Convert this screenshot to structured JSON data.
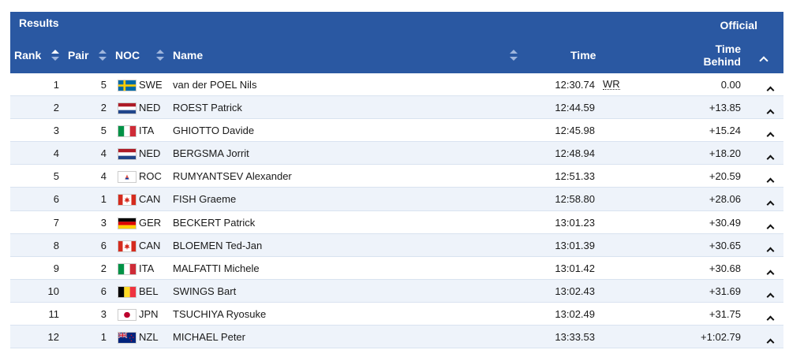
{
  "header": {
    "title": "Results",
    "status": "Official",
    "columns": {
      "rank": "Rank",
      "pair": "Pair",
      "noc": "NOC",
      "name": "Name",
      "time": "Time",
      "behind_line1": "Time",
      "behind_line2": "Behind"
    }
  },
  "rows": [
    {
      "rank": "1",
      "pair": "5",
      "noc": "SWE",
      "flag": "flag-sweden-icon",
      "name": "van der POEL Nils",
      "time": "12:30.74",
      "record": "WR",
      "behind": "0.00"
    },
    {
      "rank": "2",
      "pair": "2",
      "noc": "NED",
      "flag": "flag-netherlands-icon",
      "name": "ROEST Patrick",
      "time": "12:44.59",
      "record": "",
      "behind": "+13.85"
    },
    {
      "rank": "3",
      "pair": "5",
      "noc": "ITA",
      "flag": "flag-italy-icon",
      "name": "GHIOTTO Davide",
      "time": "12:45.98",
      "record": "",
      "behind": "+15.24"
    },
    {
      "rank": "4",
      "pair": "4",
      "noc": "NED",
      "flag": "flag-netherlands-icon",
      "name": "BERGSMA Jorrit",
      "time": "12:48.94",
      "record": "",
      "behind": "+18.20"
    },
    {
      "rank": "5",
      "pair": "4",
      "noc": "ROC",
      "flag": "flag-roc-icon",
      "name": "RUMYANTSEV Alexander",
      "time": "12:51.33",
      "record": "",
      "behind": "+20.59"
    },
    {
      "rank": "6",
      "pair": "1",
      "noc": "CAN",
      "flag": "flag-canada-icon",
      "name": "FISH Graeme",
      "time": "12:58.80",
      "record": "",
      "behind": "+28.06"
    },
    {
      "rank": "7",
      "pair": "3",
      "noc": "GER",
      "flag": "flag-germany-icon",
      "name": "BECKERT Patrick",
      "time": "13:01.23",
      "record": "",
      "behind": "+30.49"
    },
    {
      "rank": "8",
      "pair": "6",
      "noc": "CAN",
      "flag": "flag-canada-icon",
      "name": "BLOEMEN Ted-Jan",
      "time": "13:01.39",
      "record": "",
      "behind": "+30.65"
    },
    {
      "rank": "9",
      "pair": "2",
      "noc": "ITA",
      "flag": "flag-italy-icon",
      "name": "MALFATTI Michele",
      "time": "13:01.42",
      "record": "",
      "behind": "+30.68"
    },
    {
      "rank": "10",
      "pair": "6",
      "noc": "BEL",
      "flag": "flag-belgium-icon",
      "name": "SWINGS Bart",
      "time": "13:02.43",
      "record": "",
      "behind": "+31.69"
    },
    {
      "rank": "11",
      "pair": "3",
      "noc": "JPN",
      "flag": "flag-japan-icon",
      "name": "TSUCHIYA Ryosuke",
      "time": "13:02.49",
      "record": "",
      "behind": "+31.75"
    },
    {
      "rank": "12",
      "pair": "1",
      "noc": "NZL",
      "flag": "flag-new-zealand-icon",
      "name": "MICHAEL Peter",
      "time": "13:33.53",
      "record": "",
      "behind": "+1:02.79"
    }
  ],
  "colors": {
    "header_bg": "#2a58a2",
    "row_alt_bg": "#eef3fa",
    "row_border": "#d9e3f0"
  }
}
